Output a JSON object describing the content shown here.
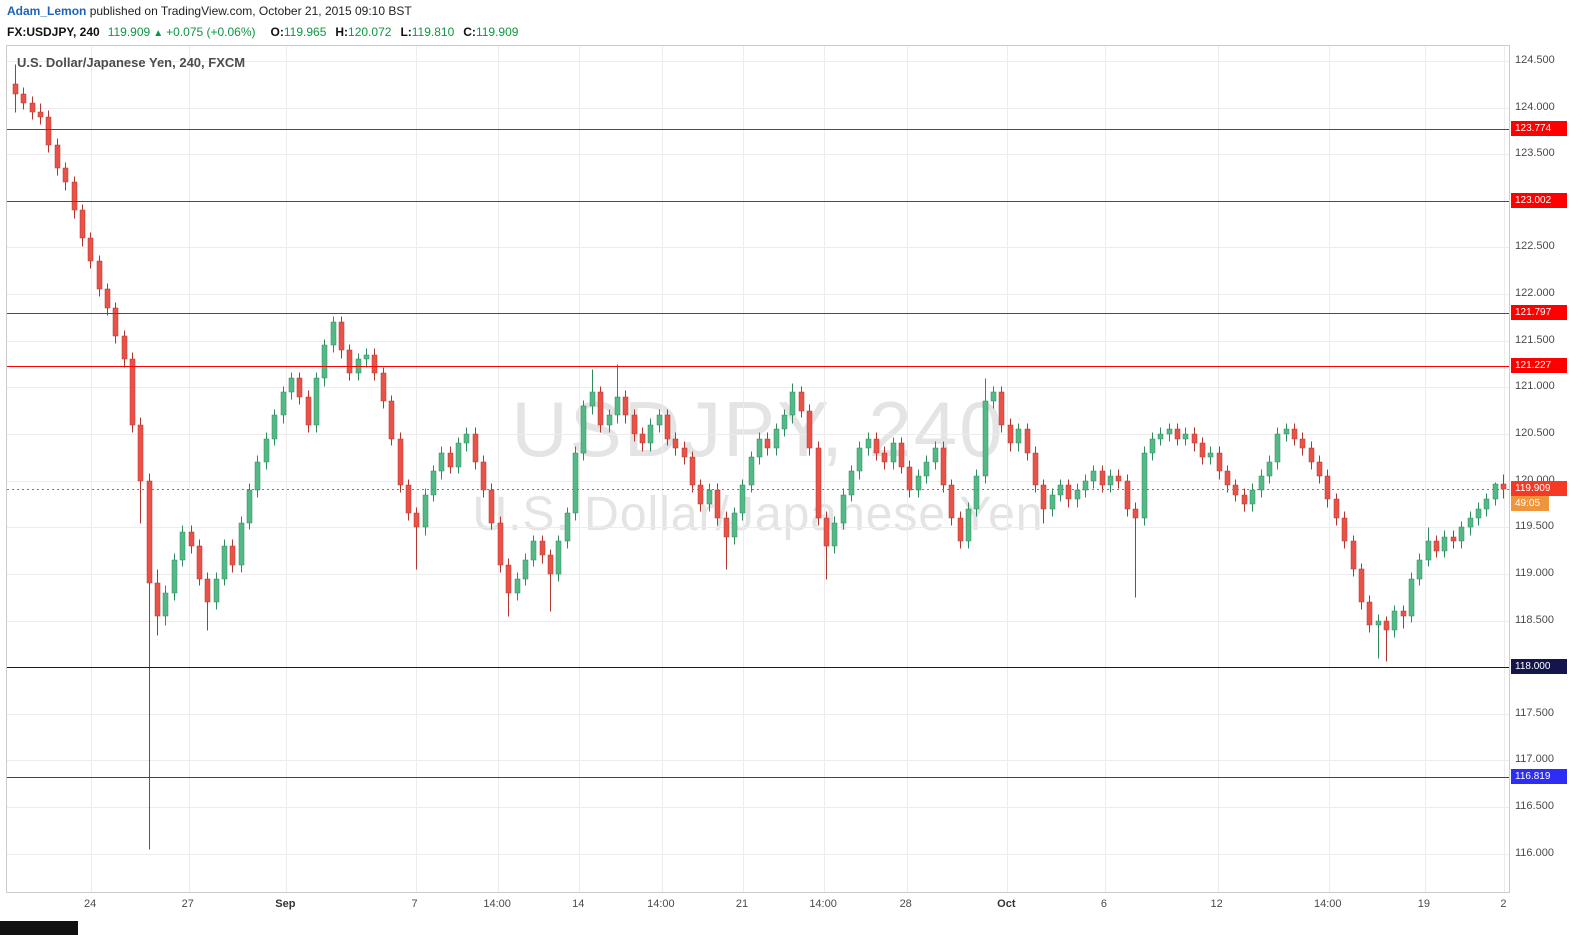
{
  "page": {
    "byline": {
      "author": "Adam_Lemon",
      "rest": " published on TradingView.com, October 21, 2015 09:10 BST"
    },
    "symbol_line": {
      "symbol": "FX:USDJPY, 240",
      "last": "119.909",
      "arrow": "▲",
      "change": "+0.075 (+0.06%)",
      "ohlc": [
        {
          "label": "O:",
          "value": "119.965"
        },
        {
          "label": "H:",
          "value": "120.072"
        },
        {
          "label": "L:",
          "value": "119.810"
        },
        {
          "label": "C:",
          "value": "119.909"
        }
      ]
    }
  },
  "chart": {
    "title": "U.S. Dollar/Japanese Yen, 240, FXCM",
    "watermark_line1": "USDJPY, 240",
    "watermark_line2": "U.S. Dollar/Japanese Yen"
  },
  "colors": {
    "up": "#53b987",
    "up_border": "#2f8a5f",
    "down": "#eb5247",
    "down_border": "#b23630",
    "grid": "#ececec",
    "border": "#cccccc",
    "header_green": "#0c9642",
    "link_blue": "#1c62b9",
    "watermark": "#e4e4e4"
  },
  "chart_data": {
    "type": "candlestick",
    "symbol": "USDJPY",
    "interval": "240",
    "exchange": "FXCM",
    "title": "U.S. Dollar/Japanese Yen, 240, FXCM",
    "price_axis": {
      "min": 115.59,
      "max": 124.66,
      "ticks": [
        {
          "value": 124.5,
          "label": "124.500"
        },
        {
          "value": 124.0,
          "label": "124.000"
        },
        {
          "value": 123.5,
          "label": "123.500"
        },
        {
          "value": 123.0,
          "label": "123.000"
        },
        {
          "value": 122.5,
          "label": "122.500"
        },
        {
          "value": 122.0,
          "label": "122.000"
        },
        {
          "value": 121.5,
          "label": "121.500"
        },
        {
          "value": 121.0,
          "label": "121.000"
        },
        {
          "value": 120.5,
          "label": "120.500"
        },
        {
          "value": 120.0,
          "label": "120.000"
        },
        {
          "value": 119.5,
          "label": "119.500"
        },
        {
          "value": 119.0,
          "label": "119.000"
        },
        {
          "value": 118.5,
          "label": "118.500"
        },
        {
          "value": 118.0,
          "label": "118.000"
        },
        {
          "value": 117.5,
          "label": "117.500"
        },
        {
          "value": 117.0,
          "label": "117.000"
        },
        {
          "value": 116.5,
          "label": "116.500"
        },
        {
          "value": 116.0,
          "label": "116.000"
        }
      ]
    },
    "time_axis": {
      "labels": [
        {
          "text": "24",
          "pos": 0.056,
          "bold": false
        },
        {
          "text": "27",
          "pos": 0.121,
          "bold": false
        },
        {
          "text": "Sep",
          "pos": 0.186,
          "bold": true
        },
        {
          "text": "7",
          "pos": 0.272,
          "bold": false
        },
        {
          "text": "14:00",
          "pos": 0.327,
          "bold": false
        },
        {
          "text": "14",
          "pos": 0.381,
          "bold": false
        },
        {
          "text": "14:00",
          "pos": 0.436,
          "bold": false
        },
        {
          "text": "21",
          "pos": 0.49,
          "bold": false
        },
        {
          "text": "14:00",
          "pos": 0.544,
          "bold": false
        },
        {
          "text": "28",
          "pos": 0.599,
          "bold": false
        },
        {
          "text": "Oct",
          "pos": 0.666,
          "bold": true
        },
        {
          "text": "6",
          "pos": 0.731,
          "bold": false
        },
        {
          "text": "12",
          "pos": 0.806,
          "bold": false
        },
        {
          "text": "14:00",
          "pos": 0.88,
          "bold": false
        },
        {
          "text": "19",
          "pos": 0.944,
          "bold": false
        },
        {
          "text": "2",
          "pos": 0.997,
          "bold": false
        }
      ]
    },
    "horizontal_lines": [
      {
        "price": 123.774,
        "label": "123.774",
        "style": "solid",
        "color": "#ff0000",
        "name": "resistance-line-123774"
      },
      {
        "price": 123.002,
        "label": "123.002",
        "style": "solid",
        "color": "#ff0000",
        "name": "resistance-line-123002"
      },
      {
        "price": 121.797,
        "label": "121.797",
        "style": "solid",
        "color": "#ff0000",
        "name": "resistance-line-121797"
      },
      {
        "price": 121.227,
        "label": "121.227",
        "style": "solid",
        "color": "#ff0000",
        "name": "resistance-line-121227"
      },
      {
        "price": 119.909,
        "label": "119.909",
        "sublabel": "49:05",
        "style": "dotted",
        "color": "#ff4a1a",
        "badge_color": "#f53924",
        "sub_badge_color": "#ef953b",
        "name": "last-price-line"
      },
      {
        "price": 118.0,
        "label": "118.000",
        "style": "solid",
        "color": "#15154d",
        "name": "support-line-118000"
      },
      {
        "price": 116.819,
        "label": "116.819",
        "style": "solid",
        "color": "#2d2df5",
        "name": "support-line-116819"
      }
    ],
    "candles": [
      [
        124.25,
        124.47,
        123.95,
        124.15
      ],
      [
        124.15,
        124.22,
        123.98,
        124.05
      ],
      [
        124.05,
        124.12,
        123.88,
        123.95
      ],
      [
        123.95,
        124.05,
        123.82,
        123.9
      ],
      [
        123.9,
        123.97,
        123.52,
        123.6
      ],
      [
        123.6,
        123.67,
        123.28,
        123.35
      ],
      [
        123.35,
        123.42,
        123.12,
        123.2
      ],
      [
        123.2,
        123.27,
        122.82,
        122.9
      ],
      [
        122.9,
        122.97,
        122.52,
        122.6
      ],
      [
        122.6,
        122.67,
        122.28,
        122.35
      ],
      [
        122.35,
        122.42,
        121.98,
        122.05
      ],
      [
        122.05,
        122.12,
        121.78,
        121.85
      ],
      [
        121.85,
        121.92,
        121.48,
        121.55
      ],
      [
        121.55,
        121.62,
        121.22,
        121.3
      ],
      [
        121.3,
        121.38,
        120.52,
        120.6
      ],
      [
        120.6,
        120.68,
        119.55,
        120.0
      ],
      [
        120.0,
        120.08,
        116.05,
        118.9
      ],
      [
        118.9,
        119.05,
        118.35,
        118.55
      ],
      [
        118.55,
        118.88,
        118.45,
        118.8
      ],
      [
        118.8,
        119.22,
        118.72,
        119.15
      ],
      [
        119.15,
        119.52,
        119.08,
        119.45
      ],
      [
        119.45,
        119.52,
        119.22,
        119.3
      ],
      [
        119.3,
        119.37,
        118.88,
        118.95
      ],
      [
        118.95,
        119.02,
        118.4,
        118.7
      ],
      [
        118.7,
        119.02,
        118.62,
        118.95
      ],
      [
        118.95,
        119.37,
        118.88,
        119.3
      ],
      [
        119.3,
        119.37,
        119.02,
        119.1
      ],
      [
        119.1,
        119.62,
        119.02,
        119.55
      ],
      [
        119.55,
        119.97,
        119.48,
        119.9
      ],
      [
        119.9,
        120.27,
        119.82,
        120.2
      ],
      [
        120.2,
        120.52,
        120.12,
        120.45
      ],
      [
        120.45,
        120.77,
        120.38,
        120.7
      ],
      [
        120.7,
        121.02,
        120.62,
        120.95
      ],
      [
        120.95,
        121.17,
        120.88,
        121.1
      ],
      [
        121.1,
        121.17,
        120.82,
        120.9
      ],
      [
        120.9,
        120.97,
        120.52,
        120.6
      ],
      [
        120.6,
        121.17,
        120.52,
        121.1
      ],
      [
        121.1,
        121.52,
        121.02,
        121.45
      ],
      [
        121.45,
        121.76,
        121.38,
        121.7
      ],
      [
        121.7,
        121.76,
        121.32,
        121.4
      ],
      [
        121.4,
        121.47,
        121.08,
        121.15
      ],
      [
        121.15,
        121.37,
        121.08,
        121.3
      ],
      [
        121.3,
        121.42,
        121.22,
        121.35
      ],
      [
        121.35,
        121.42,
        121.08,
        121.15
      ],
      [
        121.15,
        121.22,
        120.78,
        120.85
      ],
      [
        120.85,
        120.92,
        120.38,
        120.45
      ],
      [
        120.45,
        120.52,
        119.88,
        119.95
      ],
      [
        119.95,
        120.02,
        119.58,
        119.65
      ],
      [
        119.65,
        119.72,
        119.05,
        119.5
      ],
      [
        119.5,
        119.92,
        119.42,
        119.85
      ],
      [
        119.85,
        120.17,
        119.78,
        120.1
      ],
      [
        120.1,
        120.37,
        120.02,
        120.3
      ],
      [
        120.3,
        120.37,
        120.08,
        120.15
      ],
      [
        120.15,
        120.47,
        120.08,
        120.4
      ],
      [
        120.4,
        120.57,
        120.32,
        120.5
      ],
      [
        120.5,
        120.57,
        120.12,
        120.2
      ],
      [
        120.2,
        120.27,
        119.82,
        119.9
      ],
      [
        119.9,
        119.97,
        119.48,
        119.55
      ],
      [
        119.55,
        119.62,
        119.02,
        119.1
      ],
      [
        119.1,
        119.17,
        118.55,
        118.8
      ],
      [
        118.8,
        119.02,
        118.72,
        118.95
      ],
      [
        118.95,
        119.22,
        118.88,
        119.15
      ],
      [
        119.15,
        119.42,
        119.08,
        119.35
      ],
      [
        119.35,
        119.42,
        119.12,
        119.2
      ],
      [
        119.2,
        119.27,
        118.6,
        119.0
      ],
      [
        119.0,
        119.42,
        118.92,
        119.35
      ],
      [
        119.35,
        119.72,
        119.28,
        119.65
      ],
      [
        119.65,
        120.37,
        119.58,
        120.3
      ],
      [
        120.3,
        120.87,
        120.22,
        120.8
      ],
      [
        120.8,
        121.2,
        120.72,
        120.95
      ],
      [
        120.95,
        121.02,
        120.52,
        120.6
      ],
      [
        120.6,
        120.77,
        120.52,
        120.7
      ],
      [
        120.7,
        121.25,
        120.62,
        120.9
      ],
      [
        120.9,
        120.97,
        120.62,
        120.7
      ],
      [
        120.7,
        120.77,
        120.42,
        120.5
      ],
      [
        120.5,
        120.57,
        120.32,
        120.4
      ],
      [
        120.4,
        120.67,
        120.32,
        120.6
      ],
      [
        120.6,
        120.77,
        120.52,
        120.7
      ],
      [
        120.7,
        120.77,
        120.38,
        120.45
      ],
      [
        120.45,
        120.52,
        120.28,
        120.35
      ],
      [
        120.35,
        120.42,
        120.18,
        120.25
      ],
      [
        120.25,
        120.32,
        119.88,
        119.95
      ],
      [
        119.95,
        120.02,
        119.68,
        119.75
      ],
      [
        119.75,
        119.97,
        119.68,
        119.9
      ],
      [
        119.9,
        119.97,
        119.52,
        119.6
      ],
      [
        119.6,
        119.67,
        119.05,
        119.4
      ],
      [
        119.4,
        119.72,
        119.32,
        119.65
      ],
      [
        119.65,
        120.02,
        119.58,
        119.95
      ],
      [
        119.95,
        120.32,
        119.88,
        120.25
      ],
      [
        120.25,
        120.52,
        120.18,
        120.45
      ],
      [
        120.45,
        120.52,
        120.28,
        120.35
      ],
      [
        120.35,
        120.62,
        120.28,
        120.55
      ],
      [
        120.55,
        120.77,
        120.48,
        120.7
      ],
      [
        120.7,
        121.05,
        120.62,
        120.95
      ],
      [
        120.95,
        121.02,
        120.68,
        120.75
      ],
      [
        120.75,
        120.82,
        120.28,
        120.35
      ],
      [
        120.35,
        120.42,
        119.52,
        119.6
      ],
      [
        119.6,
        119.67,
        118.95,
        119.3
      ],
      [
        119.3,
        119.62,
        119.22,
        119.55
      ],
      [
        119.55,
        119.92,
        119.48,
        119.85
      ],
      [
        119.85,
        120.17,
        119.78,
        120.1
      ],
      [
        120.1,
        120.42,
        120.02,
        120.35
      ],
      [
        120.35,
        120.52,
        120.28,
        120.45
      ],
      [
        120.45,
        120.52,
        120.22,
        120.3
      ],
      [
        120.3,
        120.37,
        120.12,
        120.2
      ],
      [
        120.2,
        120.47,
        120.12,
        120.4
      ],
      [
        120.4,
        120.47,
        120.08,
        120.15
      ],
      [
        120.15,
        120.22,
        119.82,
        119.9
      ],
      [
        119.9,
        120.12,
        119.82,
        120.05
      ],
      [
        120.05,
        120.27,
        119.98,
        120.2
      ],
      [
        120.2,
        120.42,
        120.12,
        120.35
      ],
      [
        120.35,
        120.42,
        119.88,
        119.95
      ],
      [
        119.95,
        120.02,
        119.52,
        119.6
      ],
      [
        119.6,
        119.67,
        119.28,
        119.35
      ],
      [
        119.35,
        119.77,
        119.28,
        119.7
      ],
      [
        119.7,
        120.12,
        119.62,
        120.05
      ],
      [
        120.05,
        121.1,
        119.98,
        120.85
      ],
      [
        120.85,
        121.02,
        120.78,
        120.95
      ],
      [
        120.95,
        121.02,
        120.52,
        120.6
      ],
      [
        120.6,
        120.67,
        120.32,
        120.4
      ],
      [
        120.4,
        120.62,
        120.32,
        120.55
      ],
      [
        120.55,
        120.62,
        120.22,
        120.3
      ],
      [
        120.3,
        120.37,
        119.88,
        119.95
      ],
      [
        119.95,
        120.02,
        119.55,
        119.7
      ],
      [
        119.7,
        119.92,
        119.62,
        119.85
      ],
      [
        119.85,
        120.02,
        119.78,
        119.95
      ],
      [
        119.95,
        120.02,
        119.72,
        119.8
      ],
      [
        119.8,
        119.97,
        119.72,
        119.9
      ],
      [
        119.9,
        120.07,
        119.82,
        120.0
      ],
      [
        120.0,
        120.17,
        119.92,
        120.1
      ],
      [
        120.1,
        120.17,
        119.88,
        119.95
      ],
      [
        119.95,
        120.12,
        119.88,
        120.05
      ],
      [
        120.05,
        120.12,
        119.92,
        120.0
      ],
      [
        120.0,
        120.07,
        119.62,
        119.7
      ],
      [
        119.7,
        119.77,
        118.75,
        119.6
      ],
      [
        119.6,
        120.37,
        119.52,
        120.3
      ],
      [
        120.3,
        120.52,
        120.22,
        120.45
      ],
      [
        120.45,
        120.57,
        120.38,
        120.5
      ],
      [
        120.5,
        120.62,
        120.42,
        120.55
      ],
      [
        120.55,
        120.62,
        120.38,
        120.45
      ],
      [
        120.45,
        120.57,
        120.38,
        120.5
      ],
      [
        120.5,
        120.57,
        120.32,
        120.4
      ],
      [
        120.4,
        120.47,
        120.18,
        120.25
      ],
      [
        120.25,
        120.37,
        120.18,
        120.3
      ],
      [
        120.3,
        120.37,
        120.02,
        120.1
      ],
      [
        120.1,
        120.17,
        119.88,
        119.95
      ],
      [
        119.95,
        120.02,
        119.78,
        119.85
      ],
      [
        119.85,
        119.92,
        119.68,
        119.75
      ],
      [
        119.75,
        119.97,
        119.68,
        119.9
      ],
      [
        119.9,
        120.12,
        119.82,
        120.05
      ],
      [
        120.05,
        120.27,
        119.98,
        120.2
      ],
      [
        120.2,
        120.57,
        120.12,
        120.5
      ],
      [
        120.5,
        120.62,
        120.42,
        120.55
      ],
      [
        120.55,
        120.62,
        120.38,
        120.45
      ],
      [
        120.45,
        120.52,
        120.28,
        120.35
      ],
      [
        120.35,
        120.42,
        120.12,
        120.2
      ],
      [
        120.2,
        120.27,
        119.98,
        120.05
      ],
      [
        120.05,
        120.12,
        119.72,
        119.8
      ],
      [
        119.8,
        119.87,
        119.52,
        119.6
      ],
      [
        119.6,
        119.67,
        119.28,
        119.35
      ],
      [
        119.35,
        119.42,
        118.98,
        119.05
      ],
      [
        119.05,
        119.12,
        118.62,
        118.7
      ],
      [
        118.7,
        118.77,
        118.38,
        118.45
      ],
      [
        118.45,
        118.57,
        118.1,
        118.5
      ],
      [
        118.5,
        118.55,
        118.07,
        118.4
      ],
      [
        118.4,
        118.67,
        118.32,
        118.6
      ],
      [
        118.6,
        118.67,
        118.42,
        118.55
      ],
      [
        118.55,
        119.02,
        118.48,
        118.95
      ],
      [
        118.95,
        119.22,
        118.88,
        119.15
      ],
      [
        119.15,
        119.5,
        119.08,
        119.35
      ],
      [
        119.35,
        119.42,
        119.18,
        119.25
      ],
      [
        119.25,
        119.47,
        119.18,
        119.4
      ],
      [
        119.4,
        119.47,
        119.28,
        119.35
      ],
      [
        119.35,
        119.57,
        119.28,
        119.5
      ],
      [
        119.5,
        119.67,
        119.42,
        119.6
      ],
      [
        119.6,
        119.77,
        119.52,
        119.7
      ],
      [
        119.7,
        119.87,
        119.62,
        119.8
      ],
      [
        119.8,
        119.99,
        119.74,
        119.965
      ],
      [
        119.965,
        120.072,
        119.81,
        119.909
      ]
    ]
  }
}
